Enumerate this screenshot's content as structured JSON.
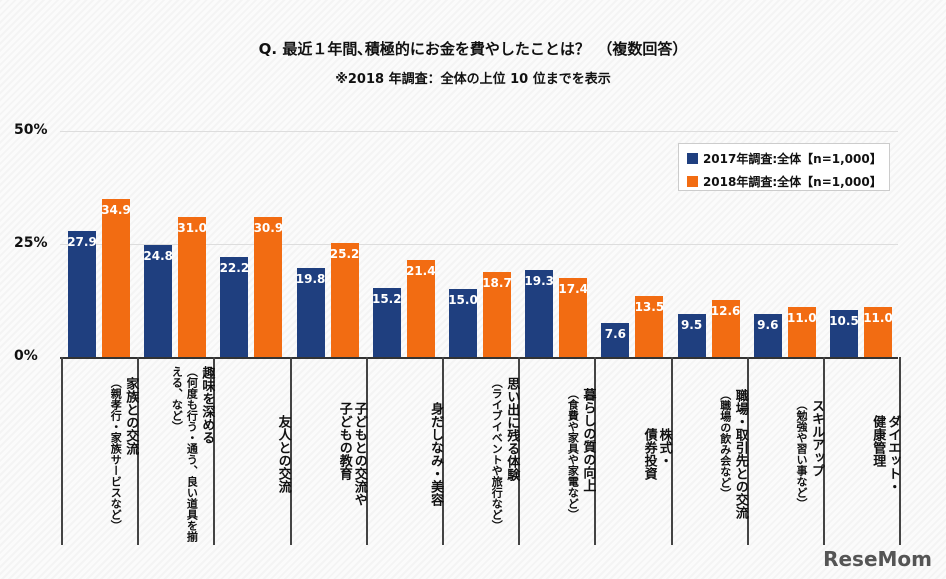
{
  "chart_data": {
    "type": "bar",
    "title": "Q. 最近１年間､積極的にお金を費やしたことは？　（複数回答）",
    "subtitle": "※2018 年調査：全体の上位 10 位までを表示",
    "ylim": [
      0,
      50
    ],
    "yticks": [
      "0%",
      "25%",
      "50%"
    ],
    "categories": [
      {
        "main": [
          "家族との交流"
        ],
        "sub": "（親孝行・家族サービスなど）"
      },
      {
        "main": [
          "趣味を深める"
        ],
        "sub": "（何度も行う・通う、良い道具を揃える、など）"
      },
      {
        "main": [
          "友人との交流"
        ],
        "sub": ""
      },
      {
        "main": [
          "子どもとの交流や",
          "子どもの教育"
        ],
        "sub": ""
      },
      {
        "main": [
          "身だしなみ・美容"
        ],
        "sub": ""
      },
      {
        "main": [
          "思い出に残る体験"
        ],
        "sub": "（ライブイベントや旅行など）"
      },
      {
        "main": [
          "暮らしの質の向上"
        ],
        "sub": "（食費や家具や家電など）"
      },
      {
        "main": [
          "株式・",
          "債券投資"
        ],
        "sub": ""
      },
      {
        "main": [
          "職場・取引先との交流"
        ],
        "sub": "（職場の飲み会など）"
      },
      {
        "main": [
          "スキルアップ"
        ],
        "sub": "（勉強や習い事など）"
      },
      {
        "main": [
          "ダイエット・",
          "健康管理"
        ],
        "sub": ""
      }
    ],
    "series": [
      {
        "name": "2017年調査:全体【n=1,000】",
        "color": "#1f3f7f",
        "values": [
          27.9,
          24.8,
          22.2,
          19.8,
          15.2,
          15.0,
          19.3,
          7.6,
          9.5,
          9.6,
          10.5
        ]
      },
      {
        "name": "2018年調査:全体【n=1,000】",
        "color": "#f26c12",
        "values": [
          34.9,
          31.0,
          30.9,
          25.2,
          21.4,
          18.7,
          17.4,
          13.5,
          12.6,
          11.0,
          11.0
        ]
      }
    ],
    "legend": "top-right"
  },
  "logo": "ReseMom"
}
